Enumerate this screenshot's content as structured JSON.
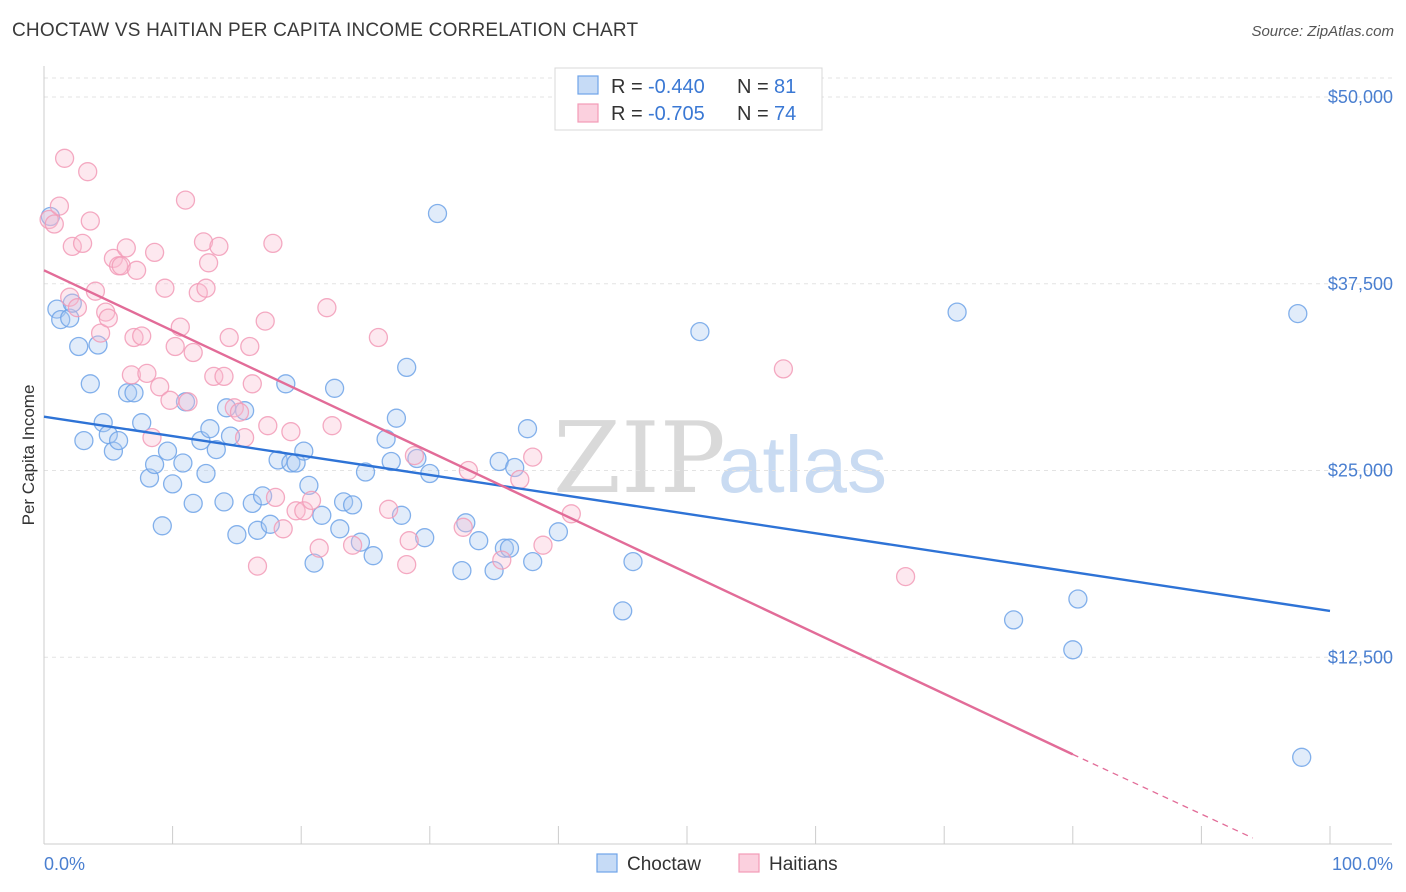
{
  "header": {
    "title": "CHOCTAW VS HAITIAN PER CAPITA INCOME CORRELATION CHART",
    "source": "Source: ZipAtlas.com"
  },
  "watermark": {
    "zip": "ZIP",
    "atlas": "atlas"
  },
  "legend": {
    "rows": [
      {
        "r_label": "R = ",
        "r_value": "-0.440",
        "n_label": "N = ",
        "n_value": "81",
        "color": "#6fa3e8"
      },
      {
        "r_label": "R = ",
        "r_value": "-0.705",
        "n_label": "N = ",
        "n_value": "74",
        "color": "#f29bb7"
      }
    ]
  },
  "bottom_legend": {
    "items": [
      {
        "label": "Choctaw",
        "color": "#6fa3e8"
      },
      {
        "label": "Haitians",
        "color": "#f29bb7"
      }
    ]
  },
  "chart_data": {
    "type": "scatter",
    "title": "CHOCTAW VS HAITIAN PER CAPITA INCOME CORRELATION CHART",
    "xlabel": "",
    "ylabel": "Per Capita Income",
    "xlim": [
      0,
      100
    ],
    "ylim": [
      0,
      51000
    ],
    "x_tick_labels": [
      "0.0%",
      "100.0%"
    ],
    "y_ticks": [
      12500,
      25000,
      37500,
      50000
    ],
    "y_tick_labels": [
      "$12,500",
      "$25,000",
      "$37,500",
      "$50,000"
    ],
    "grid": true,
    "legend_position": "top-center",
    "series": [
      {
        "name": "Choctaw",
        "color": "#6fa3e8",
        "trend": {
          "x": [
            0,
            100
          ],
          "y": [
            28600,
            15600
          ],
          "dashed_extension": false
        },
        "points": [
          [
            0.5,
            42000
          ],
          [
            1.0,
            35800
          ],
          [
            1.3,
            35100
          ],
          [
            2.0,
            35200
          ],
          [
            2.2,
            36200
          ],
          [
            2.7,
            33300
          ],
          [
            3.1,
            27000
          ],
          [
            3.6,
            30800
          ],
          [
            4.2,
            33400
          ],
          [
            4.6,
            28200
          ],
          [
            5.0,
            27400
          ],
          [
            5.4,
            26300
          ],
          [
            5.8,
            27000
          ],
          [
            6.5,
            30200
          ],
          [
            7.0,
            30200
          ],
          [
            7.6,
            28200
          ],
          [
            8.2,
            24500
          ],
          [
            8.6,
            25400
          ],
          [
            9.2,
            21300
          ],
          [
            9.6,
            26300
          ],
          [
            10.0,
            24100
          ],
          [
            10.8,
            25500
          ],
          [
            11.0,
            29600
          ],
          [
            11.6,
            22800
          ],
          [
            12.2,
            27000
          ],
          [
            12.6,
            24800
          ],
          [
            12.9,
            27800
          ],
          [
            13.4,
            26400
          ],
          [
            14.0,
            22900
          ],
          [
            14.2,
            29200
          ],
          [
            14.5,
            27300
          ],
          [
            15.0,
            20700
          ],
          [
            15.6,
            29000
          ],
          [
            16.2,
            22800
          ],
          [
            16.6,
            21000
          ],
          [
            17.0,
            23300
          ],
          [
            17.6,
            21400
          ],
          [
            18.2,
            25700
          ],
          [
            18.8,
            30800
          ],
          [
            19.2,
            25500
          ],
          [
            19.6,
            25500
          ],
          [
            20.2,
            26300
          ],
          [
            20.6,
            24000
          ],
          [
            21.0,
            18800
          ],
          [
            21.6,
            22000
          ],
          [
            22.6,
            30500
          ],
          [
            23.0,
            21100
          ],
          [
            23.3,
            22900
          ],
          [
            24.0,
            22700
          ],
          [
            24.6,
            20200
          ],
          [
            25.0,
            24900
          ],
          [
            25.6,
            19300
          ],
          [
            26.6,
            27100
          ],
          [
            27.0,
            25600
          ],
          [
            27.4,
            28500
          ],
          [
            27.8,
            22000
          ],
          [
            28.2,
            31900
          ],
          [
            29.0,
            25800
          ],
          [
            29.6,
            20500
          ],
          [
            30.0,
            24800
          ],
          [
            30.6,
            42200
          ],
          [
            32.5,
            18300
          ],
          [
            32.8,
            21500
          ],
          [
            33.8,
            20300
          ],
          [
            35.0,
            18300
          ],
          [
            35.4,
            25600
          ],
          [
            35.8,
            19800
          ],
          [
            36.2,
            19800
          ],
          [
            36.6,
            25200
          ],
          [
            37.6,
            27800
          ],
          [
            38.0,
            18900
          ],
          [
            40.0,
            20900
          ],
          [
            45.0,
            15600
          ],
          [
            45.8,
            18900
          ],
          [
            51.0,
            34300
          ],
          [
            71.0,
            35600
          ],
          [
            75.4,
            15000
          ],
          [
            80.0,
            13000
          ],
          [
            80.4,
            16400
          ],
          [
            97.5,
            35500
          ],
          [
            97.8,
            5800
          ]
        ]
      },
      {
        "name": "Haitians",
        "color": "#f29bb7",
        "trend": {
          "x": [
            0,
            80
          ],
          "y": [
            38400,
            6000
          ],
          "dashed_to": [
            94,
            400
          ]
        },
        "points": [
          [
            0.4,
            41800
          ],
          [
            0.8,
            41500
          ],
          [
            1.2,
            42700
          ],
          [
            1.6,
            45900
          ],
          [
            2.0,
            36600
          ],
          [
            2.2,
            40000
          ],
          [
            2.6,
            35900
          ],
          [
            3.0,
            40200
          ],
          [
            3.4,
            45000
          ],
          [
            3.6,
            41700
          ],
          [
            4.0,
            37000
          ],
          [
            4.4,
            34200
          ],
          [
            4.8,
            35600
          ],
          [
            5.0,
            35200
          ],
          [
            5.4,
            39200
          ],
          [
            5.8,
            38700
          ],
          [
            6.0,
            38700
          ],
          [
            6.4,
            39900
          ],
          [
            6.8,
            31400
          ],
          [
            7.0,
            33900
          ],
          [
            7.2,
            38400
          ],
          [
            7.6,
            34000
          ],
          [
            8.0,
            31500
          ],
          [
            8.4,
            27200
          ],
          [
            8.6,
            39600
          ],
          [
            9.0,
            30600
          ],
          [
            9.4,
            37200
          ],
          [
            9.8,
            29700
          ],
          [
            10.2,
            33300
          ],
          [
            10.6,
            34600
          ],
          [
            11.0,
            43100
          ],
          [
            11.2,
            29600
          ],
          [
            11.6,
            32900
          ],
          [
            12.0,
            36900
          ],
          [
            12.4,
            40300
          ],
          [
            12.6,
            37200
          ],
          [
            12.8,
            38900
          ],
          [
            13.2,
            31300
          ],
          [
            13.6,
            40000
          ],
          [
            14.0,
            31300
          ],
          [
            14.4,
            33900
          ],
          [
            14.8,
            29200
          ],
          [
            15.2,
            28900
          ],
          [
            15.6,
            27200
          ],
          [
            16.0,
            33300
          ],
          [
            16.2,
            30800
          ],
          [
            16.6,
            18600
          ],
          [
            17.2,
            35000
          ],
          [
            17.4,
            28000
          ],
          [
            17.8,
            40200
          ],
          [
            18.0,
            23200
          ],
          [
            18.6,
            21100
          ],
          [
            19.2,
            27600
          ],
          [
            19.6,
            22300
          ],
          [
            20.2,
            22300
          ],
          [
            20.8,
            23000
          ],
          [
            21.4,
            19800
          ],
          [
            22.0,
            35900
          ],
          [
            22.4,
            28000
          ],
          [
            24.0,
            20000
          ],
          [
            26.0,
            33900
          ],
          [
            26.8,
            22400
          ],
          [
            28.2,
            18700
          ],
          [
            28.4,
            20300
          ],
          [
            28.8,
            26000
          ],
          [
            32.6,
            21200
          ],
          [
            33.0,
            25000
          ],
          [
            35.6,
            19000
          ],
          [
            37.0,
            24400
          ],
          [
            38.0,
            25900
          ],
          [
            38.8,
            20000
          ],
          [
            41.0,
            22100
          ],
          [
            57.5,
            31800
          ],
          [
            67.0,
            17900
          ]
        ]
      }
    ]
  }
}
